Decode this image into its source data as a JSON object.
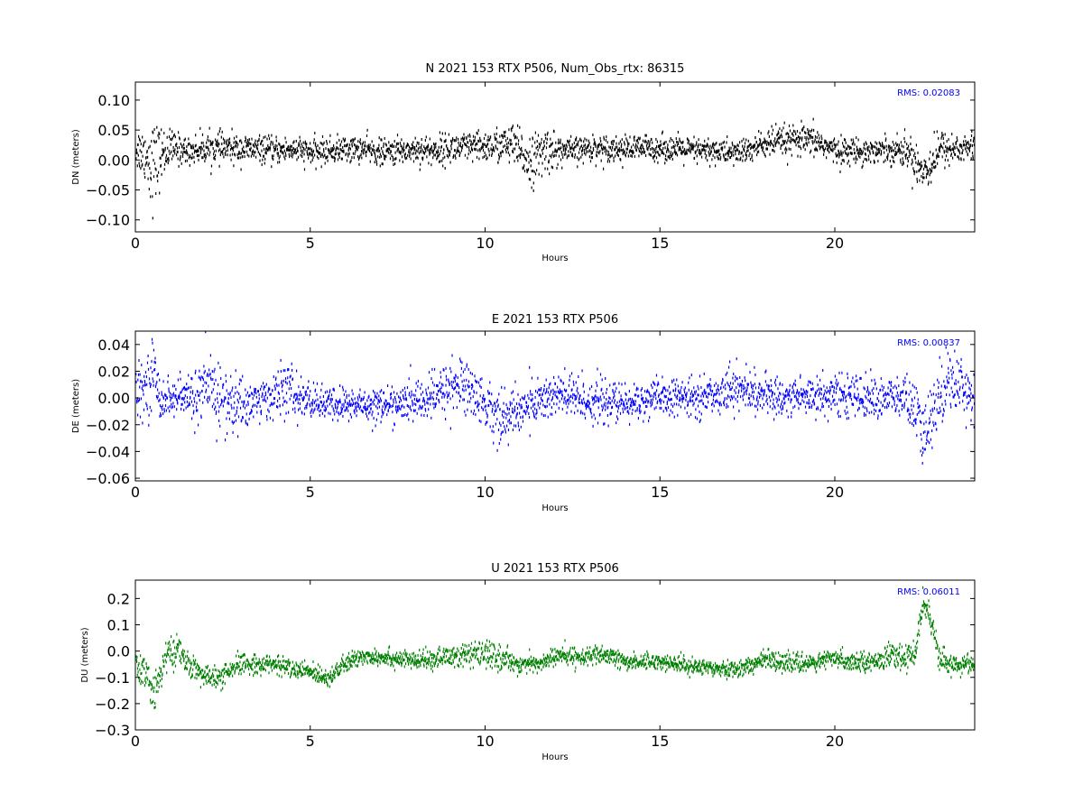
{
  "figure": {
    "background": "#ffffff"
  },
  "chart_data": [
    {
      "type": "scatter",
      "title": "N 2021 153 RTX  P506, Num_Obs_rtx: 86315",
      "xlabel": "Hours",
      "ylabel": "DN (meters)",
      "xlim": [
        0,
        24
      ],
      "ylim": [
        -0.12,
        0.13
      ],
      "xticks": [
        0,
        5,
        10,
        15,
        20
      ],
      "xtick_labels": [
        "0",
        "5",
        "10",
        "15",
        "20"
      ],
      "yticks": [
        -0.1,
        -0.05,
        0.0,
        0.05,
        0.1
      ],
      "ytick_labels": [
        "−0.10",
        "−0.05",
        "0.00",
        "0.05",
        "0.10"
      ],
      "annotation": "RMS:  0.02083",
      "color": "#000000",
      "annotation_color": "#0000ff",
      "grid": false,
      "series": [
        {
          "hours": [
            0,
            0.25,
            0.5,
            0.75,
            1,
            1.5,
            2,
            2.5,
            3,
            3.5,
            4,
            4.5,
            5,
            5.5,
            6,
            6.5,
            7,
            7.5,
            8,
            8.5,
            9,
            9.5,
            10,
            10.5,
            10.8,
            11,
            11.3,
            11.5,
            11.8,
            12,
            12.5,
            13,
            13.5,
            14,
            14.5,
            15,
            15.5,
            16,
            16.5,
            17,
            17.5,
            18,
            18.5,
            19,
            19.5,
            20,
            20.5,
            21,
            21.5,
            22,
            22.3,
            22.5,
            22.7,
            23,
            23.5,
            24
          ],
          "center": [
            0.02,
            0.01,
            -0.01,
            0.01,
            0.02,
            0.015,
            0.02,
            0.02,
            0.018,
            0.018,
            0.015,
            0.018,
            0.012,
            0.015,
            0.018,
            0.018,
            0.012,
            0.015,
            0.018,
            0.015,
            0.02,
            0.02,
            0.022,
            0.025,
            0.025,
            0.01,
            0.0,
            0.005,
            0.02,
            0.015,
            0.015,
            0.02,
            0.02,
            0.018,
            0.02,
            0.02,
            0.018,
            0.015,
            0.015,
            0.012,
            0.015,
            0.028,
            0.03,
            0.032,
            0.03,
            0.015,
            0.015,
            0.015,
            0.018,
            0.015,
            0.0,
            -0.02,
            -0.01,
            0.02,
            0.018,
            0.022
          ],
          "spread": [
            0.04,
            0.05,
            0.09,
            0.05,
            0.035,
            0.025,
            0.03,
            0.028,
            0.028,
            0.025,
            0.025,
            0.025,
            0.025,
            0.025,
            0.025,
            0.025,
            0.025,
            0.025,
            0.028,
            0.028,
            0.03,
            0.03,
            0.03,
            0.035,
            0.04,
            0.045,
            0.05,
            0.045,
            0.05,
            0.03,
            0.025,
            0.025,
            0.025,
            0.025,
            0.025,
            0.025,
            0.025,
            0.025,
            0.025,
            0.025,
            0.025,
            0.03,
            0.03,
            0.03,
            0.028,
            0.025,
            0.025,
            0.025,
            0.025,
            0.03,
            0.04,
            0.045,
            0.04,
            0.035,
            0.03,
            0.03
          ]
        }
      ]
    },
    {
      "type": "scatter",
      "title": "E 2021 153 RTX  P506",
      "xlabel": "Hours",
      "ylabel": "DE (meters)",
      "xlim": [
        0,
        24
      ],
      "ylim": [
        -0.062,
        0.05
      ],
      "xticks": [
        0,
        5,
        10,
        15,
        20
      ],
      "xtick_labels": [
        "0",
        "5",
        "10",
        "15",
        "20"
      ],
      "yticks": [
        -0.06,
        -0.04,
        -0.02,
        0.0,
        0.02,
        0.04
      ],
      "ytick_labels": [
        "−0.06",
        "−0.04",
        "−0.02",
        "0.00",
        "0.02",
        "0.04"
      ],
      "annotation": "RMS:  0.00837",
      "color": "#0000ff",
      "annotation_color": "#0000ff",
      "grid": false,
      "series": [
        {
          "hours": [
            0,
            0.3,
            0.5,
            0.7,
            1,
            1.5,
            2,
            2.3,
            2.6,
            3,
            3.5,
            4,
            4.3,
            4.6,
            5,
            5.5,
            6,
            6.5,
            7,
            7.5,
            8,
            8.5,
            9,
            9.5,
            10,
            10.3,
            10.6,
            11,
            11.5,
            12,
            12.5,
            13,
            13.5,
            14,
            14.5,
            15,
            15.5,
            16,
            16.5,
            17,
            17.5,
            18,
            18.5,
            19,
            19.5,
            20,
            20.5,
            21,
            21.5,
            22,
            22.3,
            22.5,
            22.7,
            23,
            23.3,
            23.6,
            24
          ],
          "center": [
            0.002,
            0.01,
            0.02,
            0.0,
            0.0,
            0.0,
            0.005,
            0.005,
            -0.005,
            -0.005,
            -0.002,
            0.002,
            0.008,
            0.0,
            -0.002,
            -0.005,
            -0.005,
            -0.005,
            -0.005,
            -0.005,
            -0.002,
            0.0,
            0.01,
            0.008,
            -0.005,
            -0.012,
            -0.015,
            -0.008,
            -0.002,
            0.002,
            0.0,
            -0.002,
            -0.003,
            -0.005,
            -0.002,
            0.0,
            0.0,
            0.0,
            0.002,
            0.008,
            0.005,
            0.002,
            0.0,
            0.002,
            0.002,
            0.002,
            0.002,
            0.0,
            0.0,
            0.0,
            -0.01,
            -0.03,
            -0.02,
            0.005,
            0.015,
            0.01,
            0.0
          ],
          "spread": [
            0.02,
            0.025,
            0.03,
            0.02,
            0.015,
            0.02,
            0.03,
            0.035,
            0.03,
            0.025,
            0.018,
            0.02,
            0.025,
            0.02,
            0.015,
            0.015,
            0.015,
            0.015,
            0.015,
            0.015,
            0.018,
            0.02,
            0.025,
            0.025,
            0.02,
            0.025,
            0.025,
            0.02,
            0.02,
            0.022,
            0.022,
            0.02,
            0.018,
            0.018,
            0.016,
            0.016,
            0.016,
            0.016,
            0.016,
            0.02,
            0.018,
            0.016,
            0.016,
            0.018,
            0.018,
            0.018,
            0.018,
            0.018,
            0.018,
            0.02,
            0.025,
            0.03,
            0.03,
            0.03,
            0.028,
            0.025,
            0.02
          ]
        }
      ]
    },
    {
      "type": "scatter",
      "title": "U 2021 153 RTX  P506",
      "xlabel": "Hours",
      "ylabel": "DU (meters)",
      "xlim": [
        0,
        24
      ],
      "ylim": [
        -0.3,
        0.27
      ],
      "xticks": [
        0,
        5,
        10,
        15,
        20
      ],
      "xtick_labels": [
        "0",
        "5",
        "10",
        "15",
        "20"
      ],
      "yticks": [
        -0.3,
        -0.2,
        -0.1,
        0.0,
        0.1,
        0.2
      ],
      "ytick_labels": [
        "−0.3",
        "−0.2",
        "−0.1",
        "0.0",
        "0.1",
        "0.2"
      ],
      "annotation": "RMS:  0.06011",
      "color": "#008000",
      "annotation_color": "#0000ff",
      "grid": false,
      "series": [
        {
          "hours": [
            0,
            0.3,
            0.5,
            0.8,
            1,
            1.2,
            1.5,
            2,
            2.5,
            3,
            3.5,
            4,
            4.5,
            5,
            5.5,
            6,
            6.5,
            7,
            7.5,
            8,
            8.5,
            9,
            9.5,
            10,
            10.5,
            11,
            11.5,
            12,
            12.5,
            13,
            13.5,
            14,
            14.5,
            15,
            15.5,
            16,
            16.5,
            17,
            17.5,
            18,
            18.5,
            19,
            19.5,
            20,
            20.5,
            21,
            21.5,
            22,
            22.3,
            22.5,
            22.7,
            23,
            23.3,
            23.6,
            24
          ],
          "center": [
            -0.06,
            -0.1,
            -0.15,
            -0.05,
            0.0,
            0.0,
            -0.05,
            -0.1,
            -0.1,
            -0.05,
            -0.05,
            -0.05,
            -0.07,
            -0.08,
            -0.1,
            -0.05,
            -0.02,
            -0.02,
            -0.03,
            -0.04,
            -0.03,
            -0.02,
            -0.02,
            -0.01,
            -0.03,
            -0.05,
            -0.05,
            -0.02,
            -0.02,
            -0.02,
            -0.02,
            -0.04,
            -0.04,
            -0.04,
            -0.05,
            -0.06,
            -0.06,
            -0.07,
            -0.06,
            -0.03,
            -0.04,
            -0.05,
            -0.04,
            -0.03,
            -0.04,
            -0.04,
            -0.02,
            -0.03,
            0.0,
            0.2,
            0.12,
            -0.04,
            -0.05,
            -0.05,
            -0.05
          ],
          "spread": [
            0.06,
            0.08,
            0.1,
            0.08,
            0.07,
            0.06,
            0.05,
            0.05,
            0.05,
            0.05,
            0.04,
            0.04,
            0.04,
            0.04,
            0.04,
            0.04,
            0.04,
            0.04,
            0.04,
            0.04,
            0.04,
            0.05,
            0.06,
            0.06,
            0.05,
            0.04,
            0.04,
            0.04,
            0.04,
            0.04,
            0.04,
            0.04,
            0.035,
            0.035,
            0.035,
            0.035,
            0.035,
            0.04,
            0.04,
            0.04,
            0.04,
            0.04,
            0.04,
            0.04,
            0.04,
            0.04,
            0.05,
            0.05,
            0.06,
            0.06,
            0.06,
            0.05,
            0.05,
            0.04,
            0.04
          ]
        }
      ]
    }
  ]
}
